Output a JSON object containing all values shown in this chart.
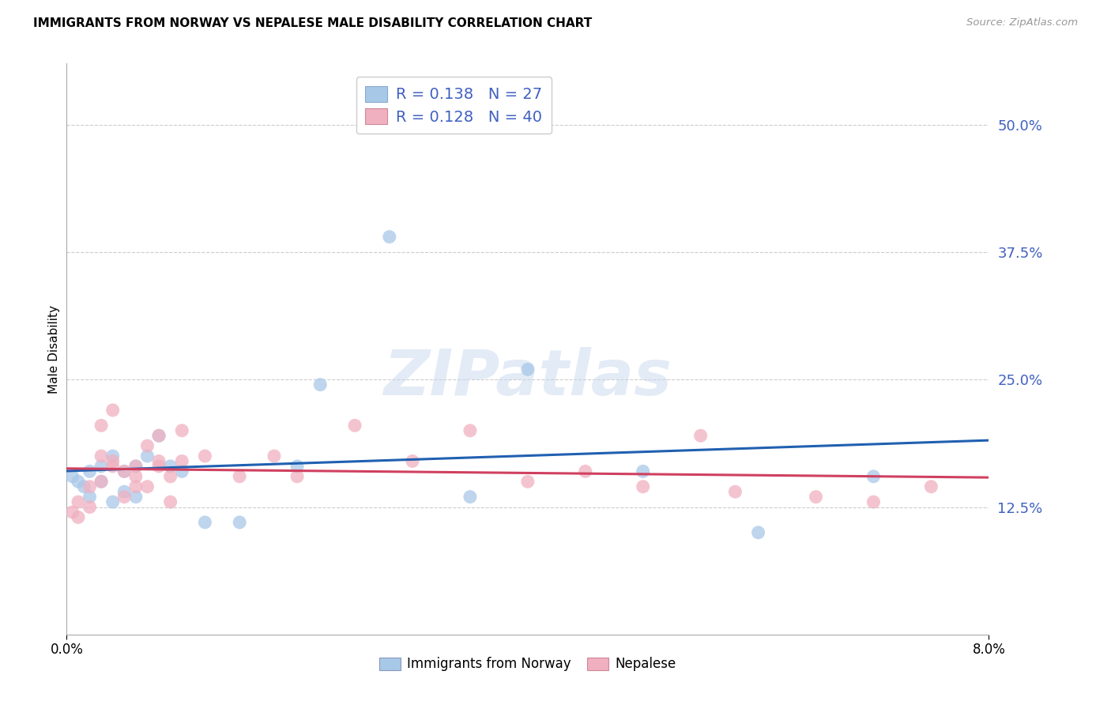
{
  "title": "IMMIGRANTS FROM NORWAY VS NEPALESE MALE DISABILITY CORRELATION CHART",
  "source": "Source: ZipAtlas.com",
  "ylabel": "Male Disability",
  "ytick_values": [
    0.125,
    0.25,
    0.375,
    0.5
  ],
  "ytick_labels": [
    "12.5%",
    "25.0%",
    "37.5%",
    "50.0%"
  ],
  "xlim": [
    0.0,
    0.08
  ],
  "ylim": [
    0.0,
    0.56
  ],
  "norway_color": "#a8c8e8",
  "norway_color_line": "#2060b0",
  "nepalese_color": "#f0b0c0",
  "nepalese_color_line": "#d04060",
  "legend_R_norway": "0.138",
  "legend_N_norway": "27",
  "legend_R_nepalese": "0.128",
  "legend_N_nepalese": "40",
  "legend_text_color": "#4060c0",
  "norway_x": [
    0.0005,
    0.001,
    0.0015,
    0.002,
    0.002,
    0.003,
    0.003,
    0.004,
    0.004,
    0.005,
    0.005,
    0.006,
    0.006,
    0.007,
    0.008,
    0.009,
    0.01,
    0.012,
    0.015,
    0.02,
    0.022,
    0.028,
    0.035,
    0.04,
    0.05,
    0.06,
    0.07
  ],
  "norway_y": [
    0.155,
    0.15,
    0.145,
    0.16,
    0.135,
    0.165,
    0.15,
    0.175,
    0.13,
    0.16,
    0.14,
    0.165,
    0.135,
    0.175,
    0.195,
    0.165,
    0.16,
    0.11,
    0.11,
    0.165,
    0.245,
    0.39,
    0.135,
    0.26,
    0.16,
    0.1,
    0.155
  ],
  "nepalese_x": [
    0.0005,
    0.001,
    0.001,
    0.002,
    0.002,
    0.003,
    0.003,
    0.003,
    0.004,
    0.004,
    0.005,
    0.005,
    0.006,
    0.006,
    0.007,
    0.007,
    0.008,
    0.008,
    0.009,
    0.009,
    0.01,
    0.01,
    0.012,
    0.015,
    0.018,
    0.02,
    0.025,
    0.03,
    0.035,
    0.04,
    0.045,
    0.05,
    0.055,
    0.058,
    0.065,
    0.07,
    0.075,
    0.004,
    0.006,
    0.008
  ],
  "nepalese_y": [
    0.12,
    0.13,
    0.115,
    0.145,
    0.125,
    0.205,
    0.175,
    0.15,
    0.22,
    0.17,
    0.16,
    0.135,
    0.165,
    0.145,
    0.185,
    0.145,
    0.195,
    0.165,
    0.155,
    0.13,
    0.2,
    0.17,
    0.175,
    0.155,
    0.175,
    0.155,
    0.205,
    0.17,
    0.2,
    0.15,
    0.16,
    0.145,
    0.195,
    0.14,
    0.135,
    0.13,
    0.145,
    0.165,
    0.155,
    0.17
  ],
  "watermark": "ZIPatlas",
  "background_color": "#ffffff",
  "grid_color": "#cccccc"
}
